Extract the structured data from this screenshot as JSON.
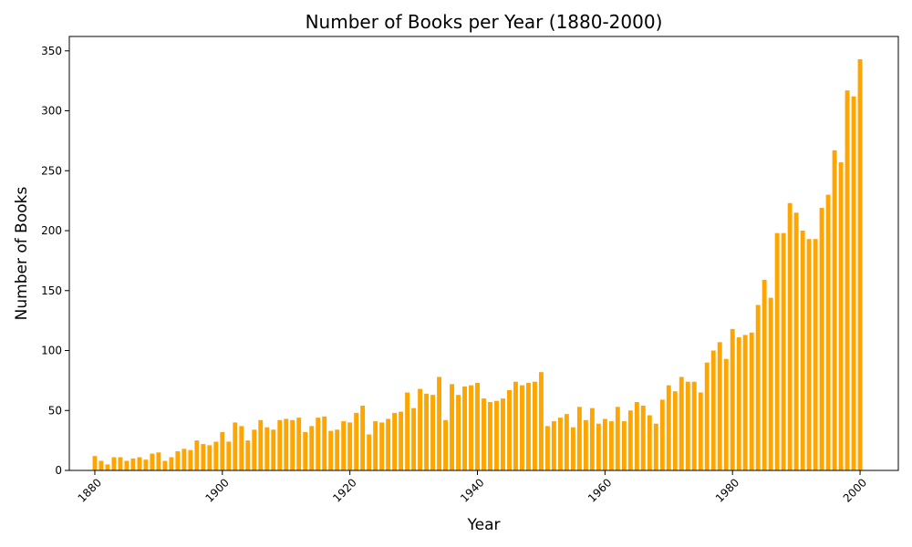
{
  "chart_data": {
    "type": "bar",
    "title": "Number of Books per Year (1880-2000)",
    "xlabel": "Year",
    "ylabel": "Number of Books",
    "xlim": [
      1876,
      2006
    ],
    "ylim": [
      0,
      362
    ],
    "xticks": [
      1880,
      1900,
      1920,
      1940,
      1960,
      1980,
      2000
    ],
    "yticks": [
      0,
      50,
      100,
      150,
      200,
      250,
      300,
      350
    ],
    "grid": false,
    "bar_color": "#ffa500",
    "x": [
      1880,
      1881,
      1882,
      1883,
      1884,
      1885,
      1886,
      1887,
      1888,
      1889,
      1890,
      1891,
      1892,
      1893,
      1894,
      1895,
      1896,
      1897,
      1898,
      1899,
      1900,
      1901,
      1902,
      1903,
      1904,
      1905,
      1906,
      1907,
      1908,
      1909,
      1910,
      1911,
      1912,
      1913,
      1914,
      1915,
      1916,
      1917,
      1918,
      1919,
      1920,
      1921,
      1922,
      1923,
      1924,
      1925,
      1926,
      1927,
      1928,
      1929,
      1930,
      1931,
      1932,
      1933,
      1934,
      1935,
      1936,
      1937,
      1938,
      1939,
      1940,
      1941,
      1942,
      1943,
      1944,
      1945,
      1946,
      1947,
      1948,
      1949,
      1950,
      1951,
      1952,
      1953,
      1954,
      1955,
      1956,
      1957,
      1958,
      1959,
      1960,
      1961,
      1962,
      1963,
      1964,
      1965,
      1966,
      1967,
      1968,
      1969,
      1970,
      1971,
      1972,
      1973,
      1974,
      1975,
      1976,
      1977,
      1978,
      1979,
      1980,
      1981,
      1982,
      1983,
      1984,
      1985,
      1986,
      1987,
      1988,
      1989,
      1990,
      1991,
      1992,
      1993,
      1994,
      1995,
      1996,
      1997,
      1998,
      1999,
      2000
    ],
    "values": [
      12,
      8,
      5,
      11,
      11,
      8,
      10,
      11,
      9,
      14,
      15,
      8,
      11,
      16,
      18,
      17,
      25,
      22,
      21,
      24,
      32,
      24,
      40,
      37,
      25,
      34,
      42,
      36,
      34,
      42,
      43,
      42,
      44,
      32,
      37,
      44,
      45,
      33,
      34,
      41,
      40,
      48,
      54,
      30,
      41,
      40,
      43,
      48,
      49,
      65,
      52,
      68,
      64,
      63,
      78,
      42,
      72,
      63,
      70,
      71,
      73,
      60,
      57,
      58,
      60,
      67,
      74,
      71,
      73,
      74,
      82,
      37,
      41,
      44,
      47,
      36,
      53,
      42,
      52,
      39,
      43,
      41,
      53,
      41,
      50,
      57,
      54,
      46,
      39,
      59,
      71,
      66,
      78,
      74,
      74,
      65,
      90,
      100,
      107,
      93,
      118,
      111,
      113,
      115,
      138,
      159,
      144,
      198,
      198,
      223,
      215,
      200,
      193,
      193,
      219,
      230,
      267,
      257,
      317,
      312,
      343
    ]
  }
}
